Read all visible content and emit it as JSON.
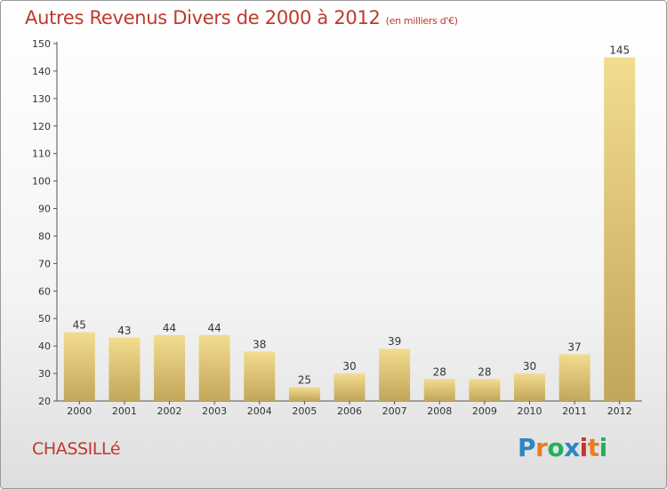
{
  "title": "Autres Revenus Divers de 2000 à 2012",
  "unit": "(en milliers d'€)",
  "city": "CHASSILLé",
  "brand": {
    "letters": [
      "P",
      "r",
      "o",
      "x",
      "i",
      "t",
      "i"
    ],
    "colors": [
      "#2e86c1",
      "#e67e22",
      "#27ae60",
      "#2e86c1",
      "#c0392b",
      "#e67e22",
      "#27ae60"
    ]
  },
  "colors": {
    "title": "#c0392b",
    "bar_top": "#f3dc8f",
    "bar_bottom": "#c2a65a"
  },
  "chart_data": {
    "type": "bar",
    "categories": [
      "2000",
      "2001",
      "2002",
      "2003",
      "2004",
      "2005",
      "2006",
      "2007",
      "2008",
      "2009",
      "2010",
      "2011",
      "2012"
    ],
    "values": [
      45,
      43,
      44,
      44,
      38,
      25,
      30,
      39,
      28,
      28,
      30,
      37,
      145
    ],
    "ylim": [
      20,
      150
    ],
    "yticks": [
      20,
      30,
      40,
      50,
      60,
      70,
      80,
      90,
      100,
      110,
      120,
      130,
      140,
      150
    ],
    "xlabel": "",
    "ylabel": "",
    "grid": false,
    "data_labels": true
  }
}
